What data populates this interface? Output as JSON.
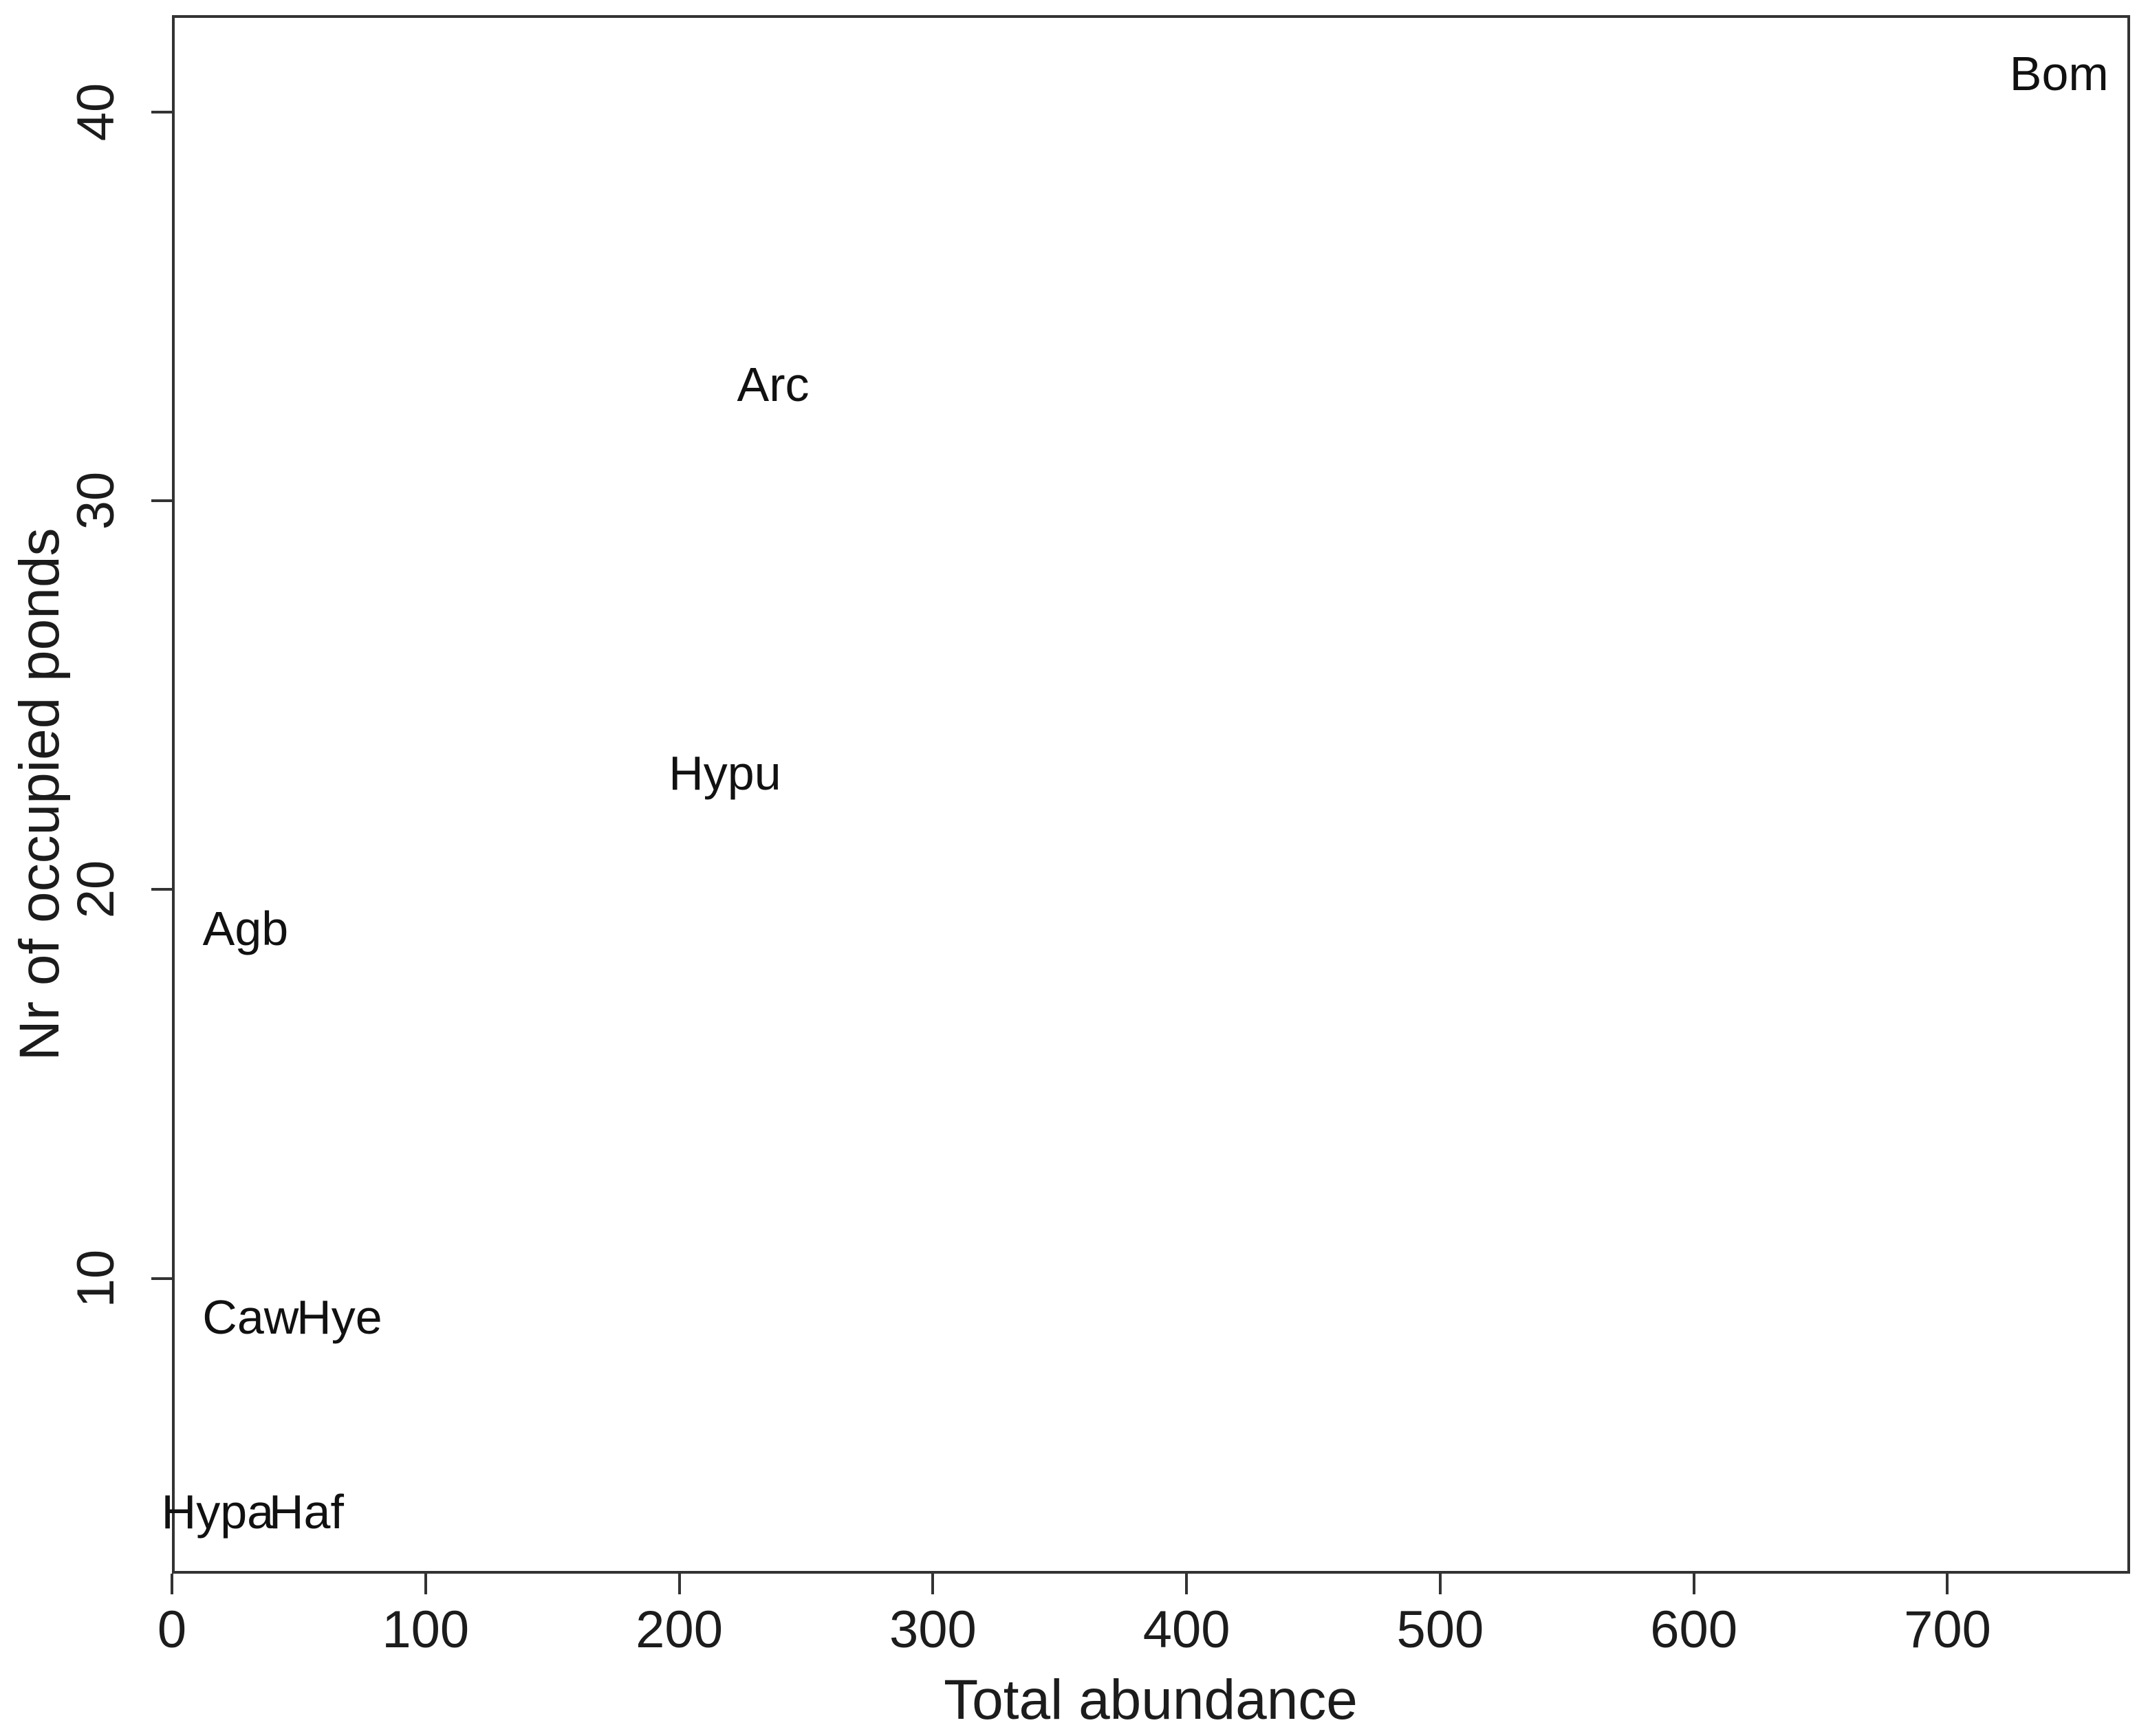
{
  "chart_data": {
    "type": "scatter",
    "title": "",
    "xlabel": "Total abundance",
    "ylabel": "Nr of occupied ponds",
    "xlim": [
      0,
      772
    ],
    "ylim": [
      2.4,
      42.5
    ],
    "x_ticks": [
      0,
      100,
      200,
      300,
      400,
      500,
      600,
      700
    ],
    "y_ticks": [
      10,
      20,
      30,
      40
    ],
    "grid": false,
    "legend": "none",
    "marker_style": "text-labels-only",
    "points": [
      {
        "label": "Bom",
        "x": 744,
        "y": 41
      },
      {
        "label": "Arc",
        "x": 237,
        "y": 33
      },
      {
        "label": "Hypu",
        "x": 218,
        "y": 23
      },
      {
        "label": "Agb",
        "x": 29,
        "y": 19
      },
      {
        "label": "Caw",
        "x": 31,
        "y": 9
      },
      {
        "label": "Hye",
        "x": 66,
        "y": 9
      },
      {
        "label": "Hypa",
        "x": 18,
        "y": 4
      },
      {
        "label": "Haf",
        "x": 53,
        "y": 4
      }
    ],
    "colors": {
      "text": "#1c1c1c",
      "axis": "#333333",
      "background": "#ffffff"
    }
  }
}
